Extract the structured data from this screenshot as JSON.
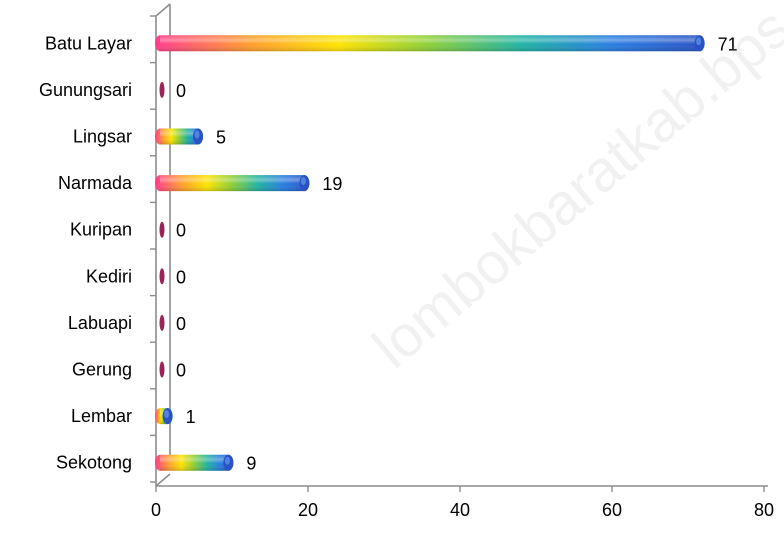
{
  "watermark": "lombokbaratkab.bps.go.id",
  "chart_data": {
    "type": "bar",
    "orientation": "horizontal",
    "categories": [
      "Batu Layar",
      "Gunungsari",
      "Lingsar",
      "Narmada",
      "Kuripan",
      "Kediri",
      "Labuapi",
      "Gerung",
      "Lembar",
      "Sekotong"
    ],
    "values": [
      71,
      0,
      5,
      19,
      0,
      0,
      0,
      0,
      1,
      9
    ],
    "xlim": [
      0,
      80
    ],
    "xticks": [
      0,
      20,
      40,
      60,
      80
    ],
    "title": "",
    "xlabel": "",
    "ylabel": "",
    "grid": false,
    "data_labels": true,
    "bar_style": "3d cylinder, rainbow gradient",
    "colors": {
      "gradient": [
        "#ff3c8c",
        "#ff9a30",
        "#ffe400",
        "#8ccf3a",
        "#1fb3a3",
        "#2a7de1",
        "#2a52c4"
      ],
      "zero_bar": "#9b2456",
      "axis": "#8c8c8c"
    }
  }
}
